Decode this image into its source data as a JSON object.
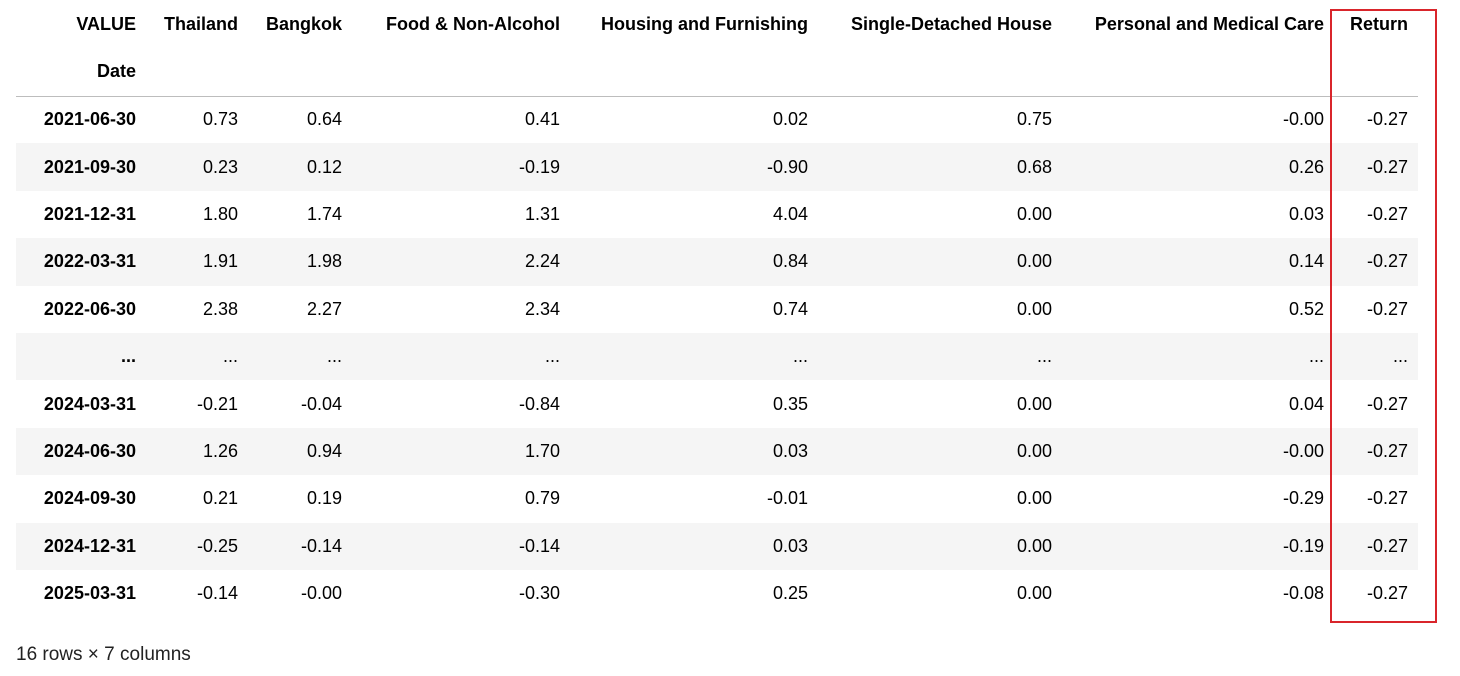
{
  "table": {
    "index_name": "VALUE",
    "index_label": "Date",
    "columns": [
      "Thailand",
      "Bangkok",
      "Food & Non-Alcohol",
      "Housing and Furnishing",
      "Single-Detached House",
      "Personal and Medical Care",
      "Return"
    ],
    "rows": [
      {
        "index": "2021-06-30",
        "values": [
          "0.73",
          "0.64",
          "0.41",
          "0.02",
          "0.75",
          "-0.00",
          "-0.27"
        ]
      },
      {
        "index": "2021-09-30",
        "values": [
          "0.23",
          "0.12",
          "-0.19",
          "-0.90",
          "0.68",
          "0.26",
          "-0.27"
        ]
      },
      {
        "index": "2021-12-31",
        "values": [
          "1.80",
          "1.74",
          "1.31",
          "4.04",
          "0.00",
          "0.03",
          "-0.27"
        ]
      },
      {
        "index": "2022-03-31",
        "values": [
          "1.91",
          "1.98",
          "2.24",
          "0.84",
          "0.00",
          "0.14",
          "-0.27"
        ]
      },
      {
        "index": "2022-06-30",
        "values": [
          "2.38",
          "2.27",
          "2.34",
          "0.74",
          "0.00",
          "0.52",
          "-0.27"
        ]
      },
      {
        "index": "...",
        "values": [
          "...",
          "...",
          "...",
          "...",
          "...",
          "...",
          "..."
        ]
      },
      {
        "index": "2024-03-31",
        "values": [
          "-0.21",
          "-0.04",
          "-0.84",
          "0.35",
          "0.00",
          "0.04",
          "-0.27"
        ]
      },
      {
        "index": "2024-06-30",
        "values": [
          "1.26",
          "0.94",
          "1.70",
          "0.03",
          "0.00",
          "-0.00",
          "-0.27"
        ]
      },
      {
        "index": "2024-09-30",
        "values": [
          "0.21",
          "0.19",
          "0.79",
          "-0.01",
          "0.00",
          "-0.29",
          "-0.27"
        ]
      },
      {
        "index": "2024-12-31",
        "values": [
          "-0.25",
          "-0.14",
          "-0.14",
          "0.03",
          "0.00",
          "-0.19",
          "-0.27"
        ]
      },
      {
        "index": "2025-03-31",
        "values": [
          "-0.14",
          "-0.00",
          "-0.30",
          "0.25",
          "0.00",
          "-0.08",
          "-0.27"
        ]
      }
    ]
  },
  "footer": "16 rows × 7 columns"
}
